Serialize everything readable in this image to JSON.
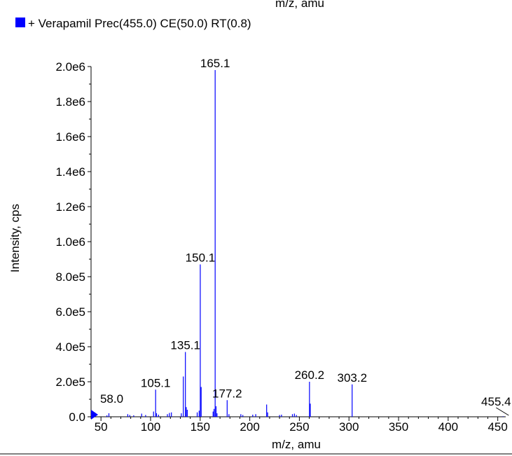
{
  "header": {
    "cut_top_text": "m/z, amu"
  },
  "legend": {
    "text": "+ Verapamil Prec(455.0) CE(50.0) RT(0.8)",
    "color": "#0000ff"
  },
  "chart_data": {
    "type": "bar",
    "xlabel": "m/z, amu",
    "ylabel": "Intensity, cps",
    "xlim": [
      40,
      458
    ],
    "ylim": [
      0,
      2000000
    ],
    "x_ticks": [
      50,
      100,
      150,
      200,
      250,
      300,
      350,
      400,
      450
    ],
    "x_tick_labels": [
      "50",
      "100",
      "150",
      "200",
      "250",
      "300",
      "350",
      "400",
      "450"
    ],
    "y_ticks": [
      0,
      200000,
      400000,
      600000,
      800000,
      1000000,
      1200000,
      1400000,
      1600000,
      1800000,
      2000000
    ],
    "y_tick_labels": [
      "0.0",
      "2.0e5",
      "4.0e5",
      "6.0e5",
      "8.0e5",
      "1.0e6",
      "1.2e6",
      "1.4e6",
      "1.6e6",
      "1.8e6",
      "2.0e6"
    ],
    "series_color": "#0000ff",
    "peaks": [
      {
        "mz": 44.0,
        "intensity": 12000
      },
      {
        "mz": 56.0,
        "intensity": 8000
      },
      {
        "mz": 58.0,
        "intensity": 20000,
        "label": "58.0"
      },
      {
        "mz": 77.0,
        "intensity": 15000
      },
      {
        "mz": 79.0,
        "intensity": 10000
      },
      {
        "mz": 83.0,
        "intensity": 8000
      },
      {
        "mz": 91.0,
        "intensity": 18000
      },
      {
        "mz": 95.0,
        "intensity": 10000
      },
      {
        "mz": 103.0,
        "intensity": 30000
      },
      {
        "mz": 105.1,
        "intensity": 155000,
        "label": "105.1"
      },
      {
        "mz": 106.0,
        "intensity": 20000
      },
      {
        "mz": 108.0,
        "intensity": 12000
      },
      {
        "mz": 117.0,
        "intensity": 15000
      },
      {
        "mz": 119.0,
        "intensity": 22000
      },
      {
        "mz": 121.0,
        "intensity": 25000
      },
      {
        "mz": 131.0,
        "intensity": 20000
      },
      {
        "mz": 133.0,
        "intensity": 230000
      },
      {
        "mz": 135.1,
        "intensity": 370000,
        "label": "135.1"
      },
      {
        "mz": 136.0,
        "intensity": 55000
      },
      {
        "mz": 137.0,
        "intensity": 40000
      },
      {
        "mz": 147.0,
        "intensity": 25000
      },
      {
        "mz": 149.0,
        "intensity": 35000
      },
      {
        "mz": 150.1,
        "intensity": 870000,
        "label": "150.1"
      },
      {
        "mz": 151.0,
        "intensity": 170000
      },
      {
        "mz": 163.0,
        "intensity": 30000
      },
      {
        "mz": 164.0,
        "intensity": 45000
      },
      {
        "mz": 165.1,
        "intensity": 1980000,
        "label": "165.1"
      },
      {
        "mz": 166.0,
        "intensity": 60000
      },
      {
        "mz": 167.0,
        "intensity": 20000
      },
      {
        "mz": 177.2,
        "intensity": 95000,
        "label": "177.2"
      },
      {
        "mz": 179.0,
        "intensity": 15000
      },
      {
        "mz": 191.0,
        "intensity": 15000
      },
      {
        "mz": 193.0,
        "intensity": 10000
      },
      {
        "mz": 203.0,
        "intensity": 12000
      },
      {
        "mz": 206.0,
        "intensity": 15000
      },
      {
        "mz": 217.0,
        "intensity": 70000
      },
      {
        "mz": 218.0,
        "intensity": 25000
      },
      {
        "mz": 230.0,
        "intensity": 10000
      },
      {
        "mz": 232.0,
        "intensity": 12000
      },
      {
        "mz": 243.0,
        "intensity": 15000
      },
      {
        "mz": 245.0,
        "intensity": 18000
      },
      {
        "mz": 247.0,
        "intensity": 10000
      },
      {
        "mz": 260.2,
        "intensity": 200000,
        "label": "260.2"
      },
      {
        "mz": 261.0,
        "intensity": 75000
      },
      {
        "mz": 303.2,
        "intensity": 185000,
        "label": "303.2"
      },
      {
        "mz": 455.4,
        "intensity": 3000,
        "label": "455.4"
      }
    ]
  }
}
